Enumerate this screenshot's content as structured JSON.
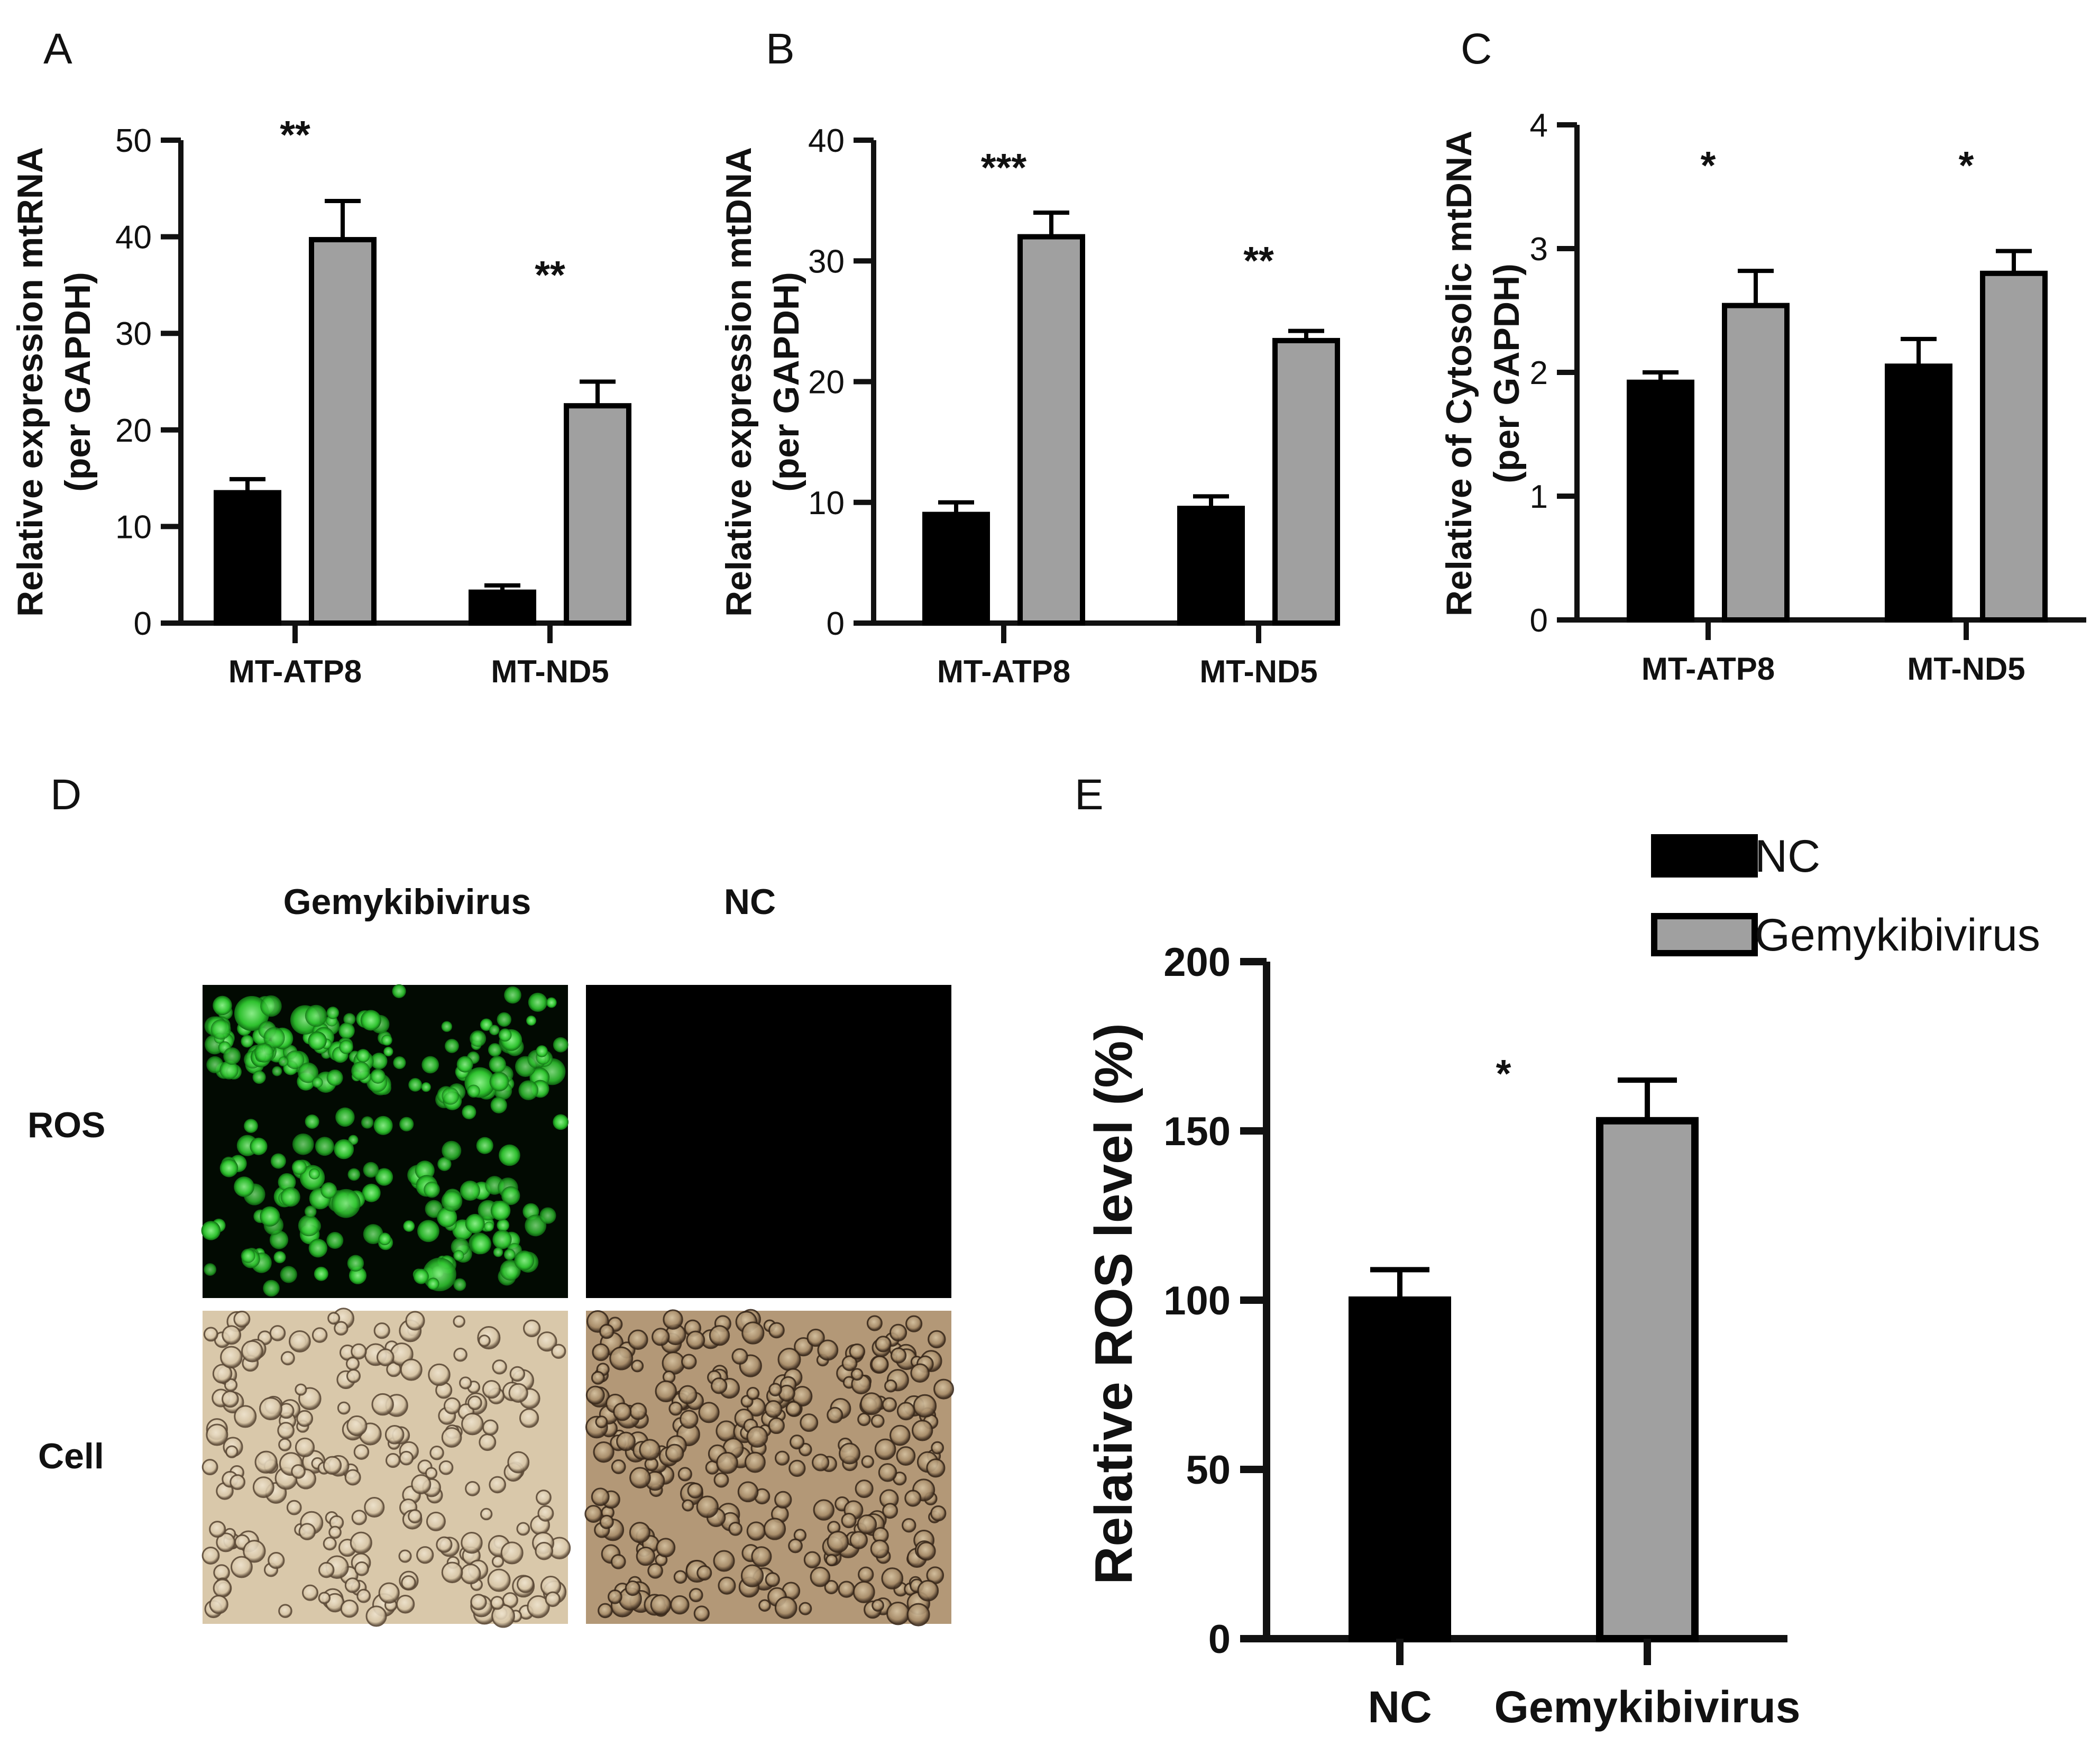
{
  "panel_letters": [
    "A",
    "B",
    "C",
    "D",
    "E"
  ],
  "colors": {
    "nc": "#000000",
    "gemykibivirus": "#a0a0a0",
    "outline": "#000000"
  },
  "legend": {
    "entries": [
      {
        "label": "NC",
        "color": "#000000"
      },
      {
        "label": "Gemykibivirus",
        "color": "#a0a0a0"
      }
    ]
  },
  "chart_data": [
    {
      "panel": "A",
      "type": "bar",
      "categories": [
        "MT-ATP8",
        "MT-ND5"
      ],
      "series": [
        {
          "values": [
            13.5,
            3.2
          ],
          "errors": [
            1.4,
            0.7
          ],
          "color": "#000000"
        },
        {
          "values": [
            39.7,
            22.5
          ],
          "errors": [
            4.0,
            2.5
          ],
          "color": "#a0a0a0"
        }
      ],
      "ylabel": [
        "Relative expression mtRNA",
        "(per GAPDH)"
      ],
      "ylim": [
        0,
        50
      ],
      "yticks": [
        0,
        10,
        20,
        30,
        40,
        50
      ],
      "significance": [
        "**",
        "**"
      ]
    },
    {
      "panel": "B",
      "type": "bar",
      "categories": [
        "MT-ATP8",
        "MT-ND5"
      ],
      "series": [
        {
          "values": [
            9.0,
            9.5
          ],
          "errors": [
            1.0,
            1.0
          ],
          "color": "#000000"
        },
        {
          "values": [
            32.0,
            23.4
          ],
          "errors": [
            2.0,
            0.8
          ],
          "color": "#a0a0a0"
        }
      ],
      "ylabel": [
        "Relative expression mtDNA",
        "(per GAPDH)"
      ],
      "ylim": [
        0,
        40
      ],
      "yticks": [
        0,
        10,
        20,
        30,
        40
      ],
      "significance": [
        "***",
        "**"
      ]
    },
    {
      "panel": "C",
      "type": "bar",
      "categories": [
        "MT-ATP8",
        "MT-ND5"
      ],
      "series": [
        {
          "values": [
            1.92,
            2.05
          ],
          "errors": [
            0.08,
            0.22
          ],
          "color": "#000000"
        },
        {
          "values": [
            2.54,
            2.8
          ],
          "errors": [
            0.28,
            0.18
          ],
          "color": "#a0a0a0"
        }
      ],
      "ylabel": [
        "Relative of Cytosolic mtDNA",
        "(per GAPDH)"
      ],
      "ylim": [
        0,
        4
      ],
      "yticks": [
        0,
        1,
        2,
        3,
        4
      ],
      "significance": [
        "*",
        "*"
      ]
    },
    {
      "panel": "E",
      "type": "bar",
      "categories": [
        "NC",
        "Gemykibivirus"
      ],
      "values": [
        100,
        153
      ],
      "errors": [
        9,
        12
      ],
      "colors": [
        "#000000",
        "#a0a0a0"
      ],
      "ylabel": [
        "Relative ROS level  (%)"
      ],
      "ylim": [
        0,
        200
      ],
      "yticks": [
        0,
        50,
        100,
        150,
        200
      ],
      "significance": [
        "*"
      ]
    }
  ],
  "micrographs": {
    "columns": [
      "Gemykibivirus",
      "NC"
    ],
    "rows": [
      "ROS",
      "Cell"
    ]
  }
}
